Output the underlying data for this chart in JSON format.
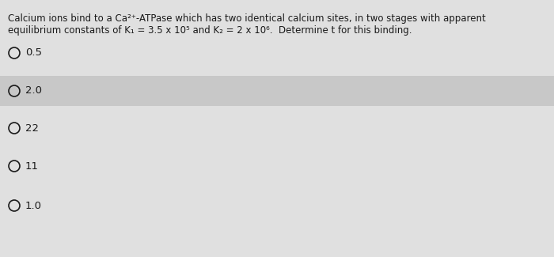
{
  "background_color": "#e0e0e0",
  "highlight_color": "#c8c8c8",
  "text_color": "#1a1a1a",
  "question_line1": "Calcium ions bind to a Ca²⁺-ATPase which has two identical calcium sites, in two stages with apparent",
  "question_line2": "equilibrium constants of K₁ = 3.5 x 10⁵ and K₂ = 2 x 10⁶.  Determine t for this binding.",
  "options": [
    "0.5",
    "2.0",
    "22",
    "11",
    "1.0"
  ],
  "highlighted_option_index": 1,
  "question_fontsize": 8.5,
  "option_fontsize": 9.5
}
